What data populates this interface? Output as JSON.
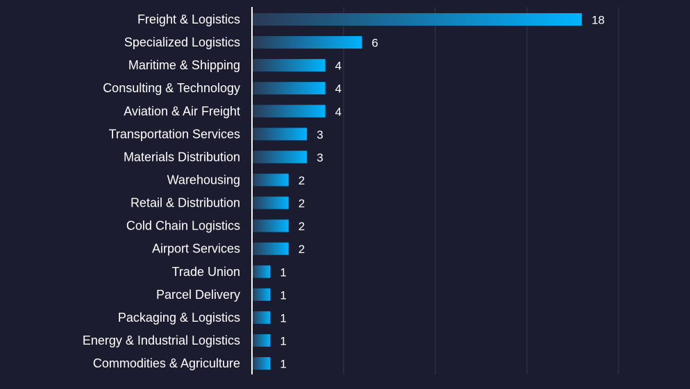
{
  "chart_data": {
    "type": "bar",
    "orientation": "horizontal",
    "categories": [
      "Freight & Logistics",
      "Specialized Logistics",
      "Maritime & Shipping",
      "Consulting & Technology",
      "Aviation & Air Freight",
      "Transportation Services",
      "Materials Distribution",
      "Warehousing",
      "Retail & Distribution",
      "Cold Chain Logistics",
      "Airport Services",
      "Trade Union",
      "Parcel Delivery",
      "Packaging & Logistics",
      "Energy & Industrial Logistics",
      "Commodities & Agriculture"
    ],
    "values": [
      18,
      6,
      4,
      4,
      4,
      3,
      3,
      2,
      2,
      2,
      2,
      1,
      1,
      1,
      1,
      1
    ],
    "xlim": [
      0,
      20
    ],
    "grid": true,
    "data_labels": true,
    "colors": {
      "background": "#1b1c30",
      "bar_start": "#2a3a55",
      "bar_end": "#00b4ff",
      "grid": "#33364f",
      "axis": "#ffffff",
      "text": "#ffffff"
    }
  }
}
